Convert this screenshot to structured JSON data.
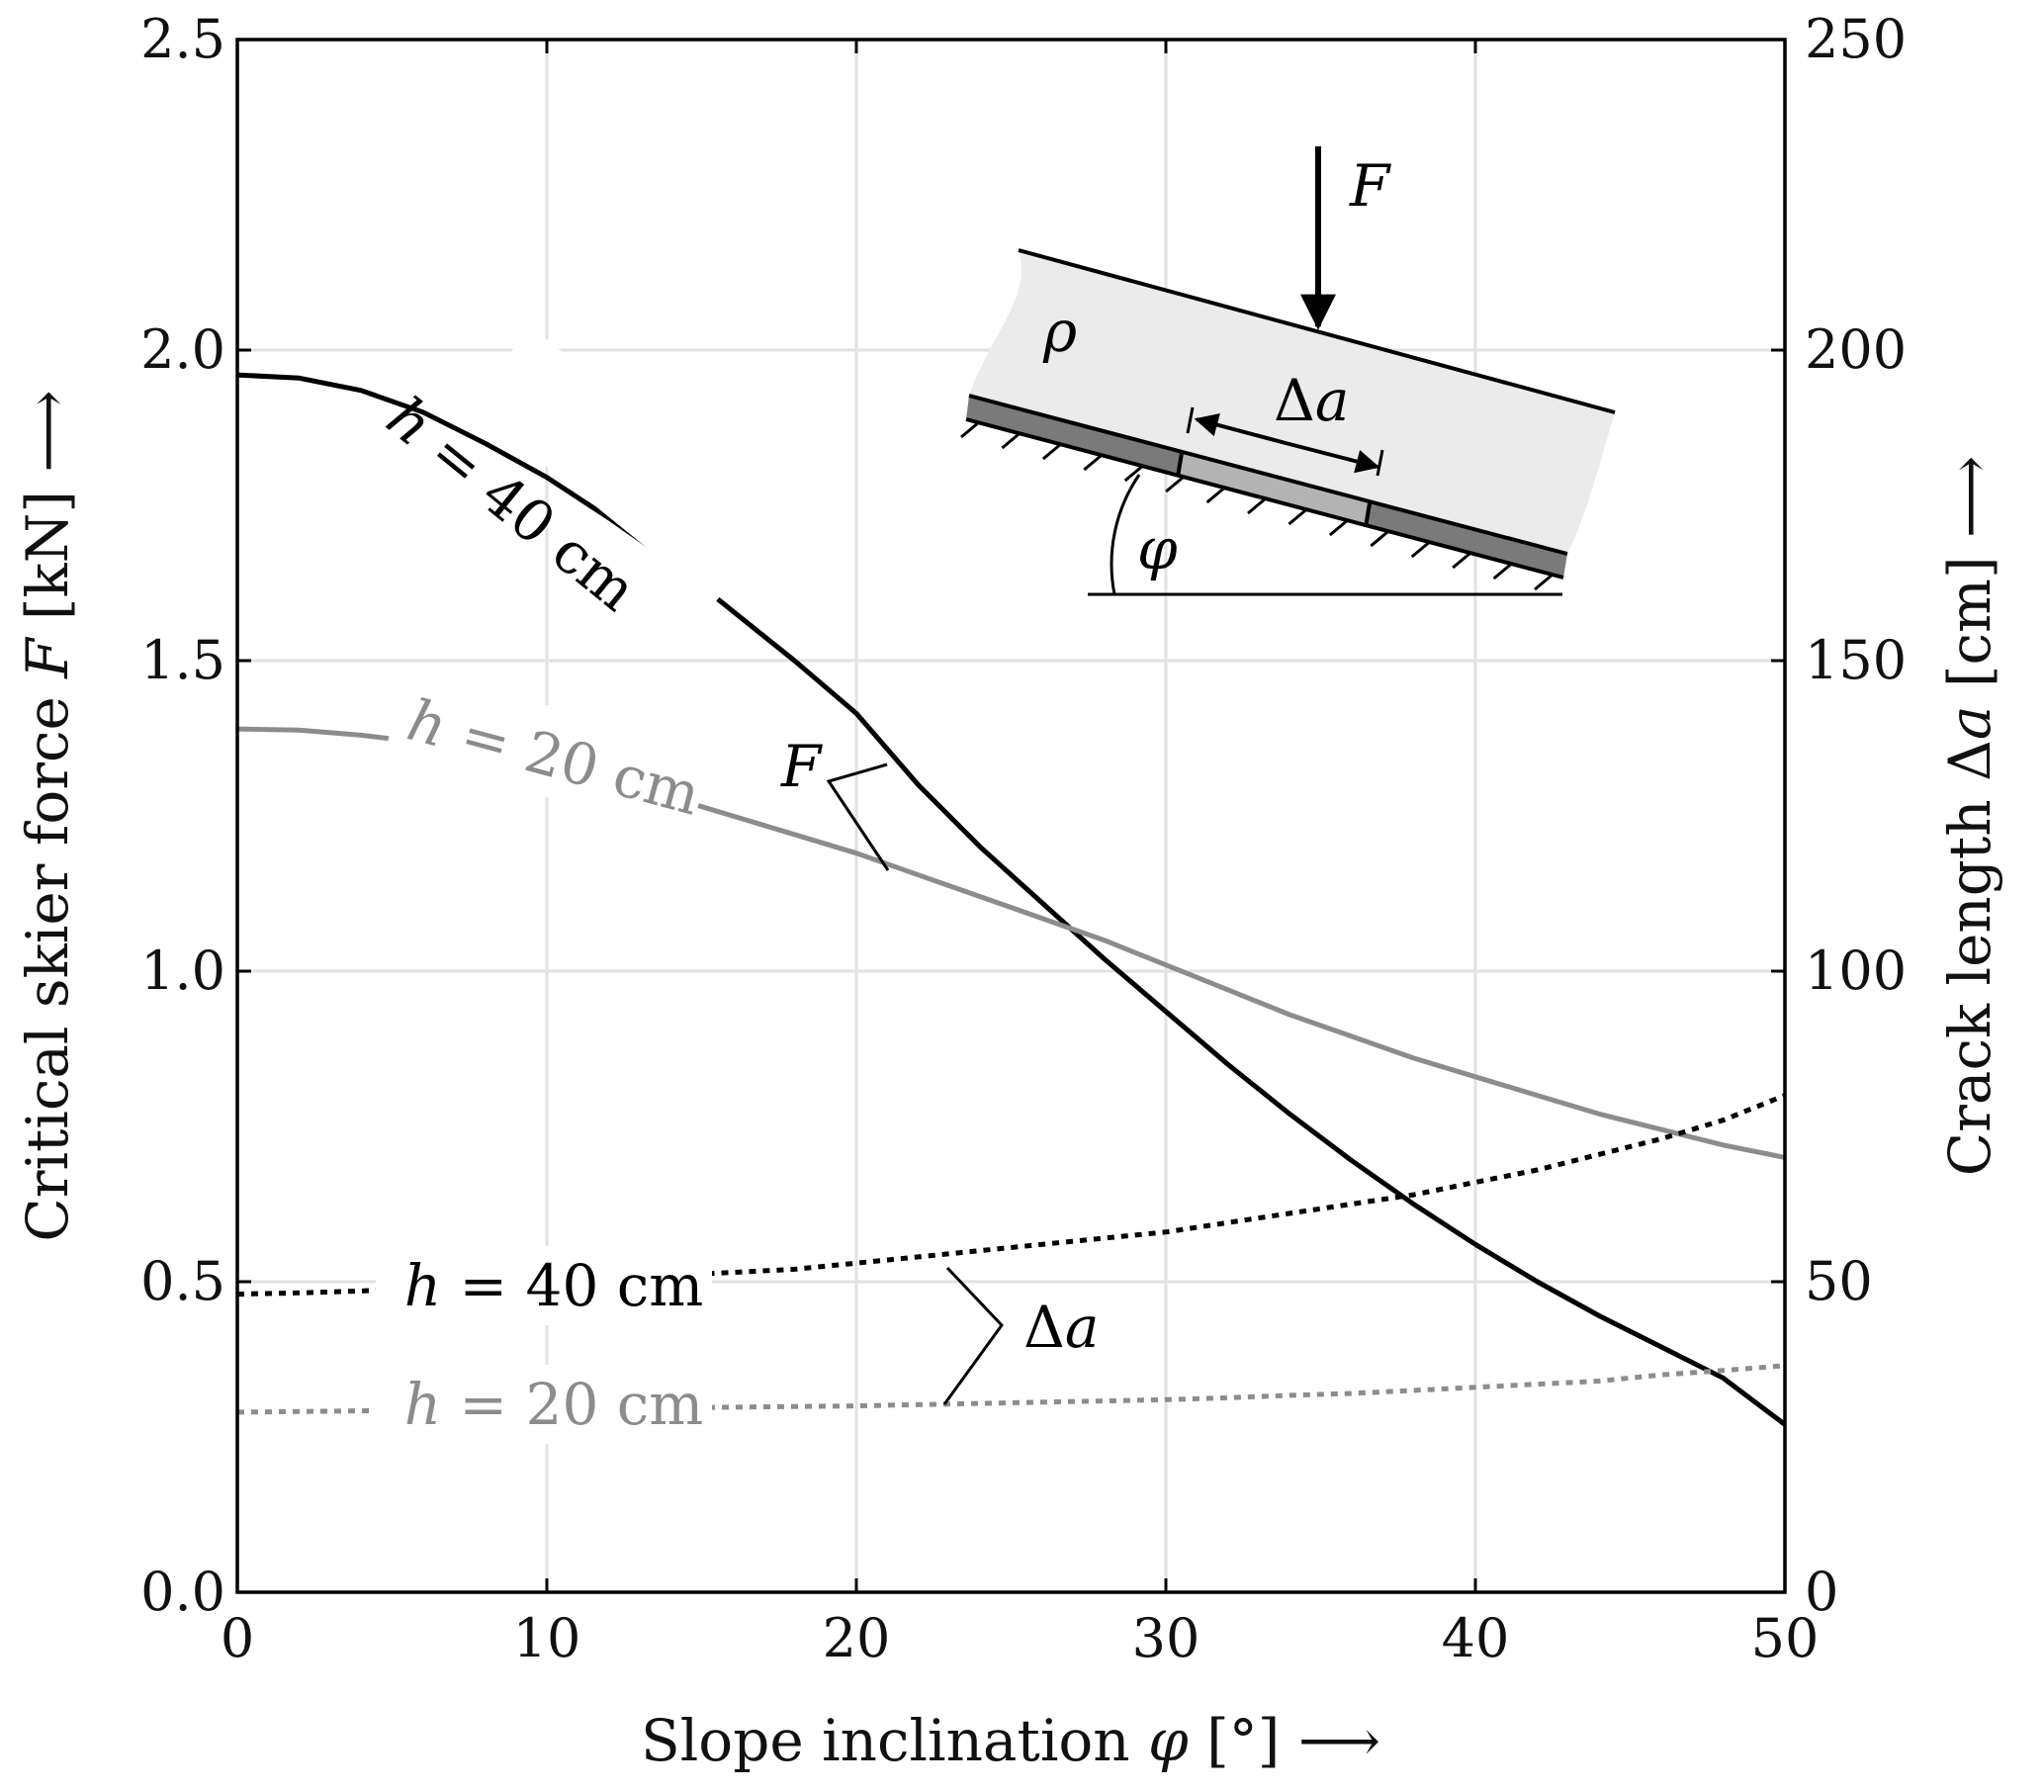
{
  "chart_data": {
    "type": "line",
    "x_axis": {
      "label": "Slope inclination φ [°] ⟶",
      "range": [
        0,
        50
      ],
      "ticks": [
        0,
        10,
        20,
        30,
        40,
        50
      ]
    },
    "y_left": {
      "label": "Critical skier force F [kN] ⟶",
      "range": [
        0,
        2.5
      ],
      "ticks": [
        "0.0",
        "0.5",
        "1.0",
        "1.5",
        "2.0",
        "2.5"
      ]
    },
    "y_right": {
      "label": "Crack length Δa [cm] ⟶",
      "range": [
        0,
        250
      ],
      "ticks": [
        "0",
        "50",
        "100",
        "150",
        "200",
        "250"
      ]
    },
    "grid": true,
    "series": [
      {
        "name": "h = 40 cm",
        "quantity": "F",
        "axis": "left",
        "color": "#000000",
        "style": "solid",
        "x": [
          0,
          2,
          4,
          6,
          8,
          10,
          12,
          14,
          16,
          18,
          20,
          22,
          24,
          26,
          28,
          30,
          32,
          34,
          36,
          38,
          40,
          42,
          44,
          46,
          48,
          50
        ],
        "y": [
          1.96,
          1.955,
          1.935,
          1.9,
          1.85,
          1.795,
          1.73,
          1.66,
          1.58,
          1.5,
          1.415,
          1.3,
          1.2,
          1.11,
          1.02,
          0.935,
          0.85,
          0.77,
          0.695,
          0.625,
          0.56,
          0.5,
          0.445,
          0.395,
          0.345,
          0.27
        ]
      },
      {
        "name": "h = 20 cm",
        "quantity": "F",
        "axis": "left",
        "color": "#8c8c8c",
        "style": "solid",
        "x": [
          0,
          2,
          4,
          6,
          8,
          10,
          12,
          14,
          16,
          18,
          20,
          22,
          24,
          26,
          28,
          30,
          32,
          34,
          36,
          38,
          40,
          42,
          44,
          46,
          48,
          50
        ],
        "y": [
          1.39,
          1.388,
          1.38,
          1.368,
          1.35,
          1.33,
          1.305,
          1.28,
          1.25,
          1.22,
          1.19,
          1.155,
          1.12,
          1.085,
          1.05,
          1.01,
          0.97,
          0.93,
          0.895,
          0.86,
          0.83,
          0.8,
          0.77,
          0.745,
          0.72,
          0.7
        ]
      },
      {
        "name": "h = 40 cm",
        "quantity": "Δa",
        "axis": "right",
        "color": "#000000",
        "style": "dotted",
        "x": [
          0,
          2,
          4,
          6,
          8,
          10,
          12,
          14,
          16,
          18,
          20,
          22,
          24,
          26,
          28,
          30,
          32,
          34,
          36,
          38,
          40,
          42,
          44,
          46,
          48,
          50
        ],
        "y": [
          48,
          48.2,
          48.5,
          49,
          49.5,
          50,
          50.5,
          51,
          51.5,
          52,
          53,
          54,
          55,
          56,
          57,
          58,
          59.5,
          61,
          62.5,
          64,
          66,
          68,
          70.5,
          73,
          76,
          80
        ]
      },
      {
        "name": "h = 20 cm",
        "quantity": "Δa",
        "axis": "right",
        "color": "#8c8c8c",
        "style": "dotted",
        "x": [
          0,
          2,
          4,
          6,
          8,
          10,
          12,
          14,
          16,
          18,
          20,
          22,
          24,
          26,
          28,
          30,
          32,
          34,
          36,
          38,
          40,
          42,
          44,
          46,
          48,
          50
        ],
        "y": [
          29,
          29.1,
          29.2,
          29.3,
          29.4,
          29.5,
          29.6,
          29.7,
          29.8,
          29.9,
          30,
          30.2,
          30.4,
          30.6,
          30.8,
          31,
          31.3,
          31.7,
          32,
          32.5,
          33,
          33.5,
          34,
          35,
          35.7,
          36.5
        ]
      }
    ],
    "annotations": {
      "label_h40_F": "h = 40 cm",
      "label_h20_F": "h = 20 cm",
      "label_h40_da": "h = 40 cm",
      "label_h20_da": "h = 20 cm",
      "group_F": "F",
      "group_da": "Δa"
    },
    "inset": {
      "force": "F",
      "density": "ρ",
      "crack": "Δa",
      "angle": "φ"
    }
  }
}
